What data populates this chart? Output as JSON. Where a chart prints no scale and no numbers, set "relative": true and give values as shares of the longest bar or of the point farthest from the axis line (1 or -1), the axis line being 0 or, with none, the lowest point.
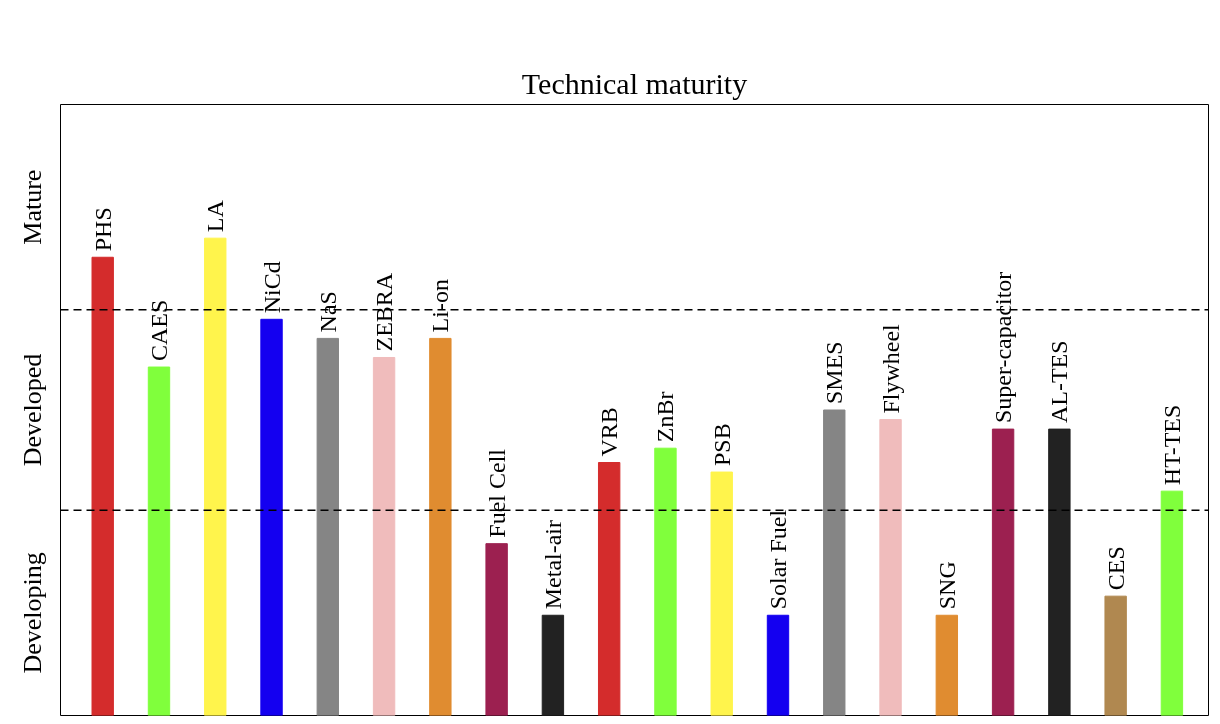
{
  "chart_data": {
    "type": "bar",
    "title": "Technical maturity",
    "relative": true,
    "categories": [
      "PHS",
      "CAES",
      "LA",
      "NiCd",
      "NaS",
      "ZEBRA",
      "Li-on",
      "Fuel Cell",
      "Metal-air",
      "VRB",
      "ZnBr",
      "PSB",
      "Solar Fuel",
      "SMES",
      "Flywheel",
      "SNG",
      "Super-capacitor",
      "AL-TES",
      "CES",
      "HT-TES"
    ],
    "values": [
      0.96,
      0.73,
      1,
      0.83,
      0.79,
      0.75,
      0.79,
      0.36,
      0.21,
      0.53,
      0.56,
      0.51,
      0.21,
      0.64,
      0.62,
      0.21,
      0.6,
      0.6,
      0.25,
      0.47
    ],
    "colors": [
      "#d42c2c",
      "#80ff3c",
      "#fff44c",
      "#1400f0",
      "#858585",
      "#f0bcbc",
      "#e08c30",
      "#9c2050",
      "#222222",
      "#d42c2c",
      "#80ff3c",
      "#fff44c",
      "#1400f0",
      "#858585",
      "#f0bcbc",
      "#e08c30",
      "#9c2050",
      "#222222",
      "#b08850",
      "#80ff3c"
    ],
    "annotations": [
      "Developing",
      "Developed",
      "Mature"
    ],
    "ref_lines": [
      {
        "axis": "y",
        "value": 0.43,
        "color": "#000000",
        "line_style": "dashed"
      },
      {
        "axis": "y",
        "value": 0.85,
        "color": "#000000",
        "line_style": "dashed"
      }
    ],
    "tick_labels": false,
    "grid": false
  }
}
